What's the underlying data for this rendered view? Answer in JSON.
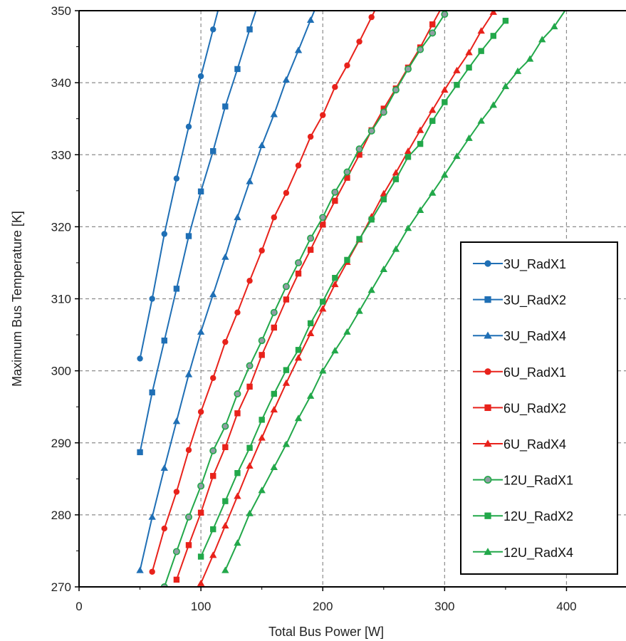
{
  "chart_data": {
    "type": "line",
    "title": "",
    "xlabel": "Total Bus Power [W]",
    "ylabel": "Maximum Bus Temperature [K]",
    "xlim": [
      0,
      450
    ],
    "ylim": [
      270,
      350
    ],
    "xticks": [
      0,
      100,
      200,
      300,
      400
    ],
    "yticks": [
      270,
      280,
      290,
      300,
      310,
      320,
      330,
      340,
      350
    ],
    "grid": true,
    "legend_position": "bottom-right",
    "series": [
      {
        "name": "3U_RadX1",
        "color": "#1f6fb5",
        "marker": "circle",
        "x": [
          50,
          60,
          70,
          80,
          90,
          100,
          110,
          120
        ],
        "y": [
          301.7,
          310.0,
          319.0,
          326.7,
          333.9,
          340.9,
          347.4,
          353.9
        ]
      },
      {
        "name": "3U_RadX2",
        "color": "#1f6fb5",
        "marker": "square",
        "x": [
          50,
          60,
          70,
          80,
          90,
          100,
          110,
          120,
          130,
          140,
          150
        ],
        "y": [
          288.7,
          297.0,
          304.2,
          311.4,
          318.7,
          324.9,
          330.5,
          336.7,
          341.9,
          347.4,
          352.5
        ]
      },
      {
        "name": "3U_RadX4",
        "color": "#1f6fb5",
        "marker": "triangle",
        "x": [
          50,
          60,
          70,
          80,
          90,
          100,
          110,
          120,
          130,
          140,
          150,
          160,
          170,
          180,
          190,
          200
        ],
        "y": [
          272.3,
          279.7,
          286.5,
          293.0,
          299.5,
          305.4,
          310.6,
          315.8,
          321.3,
          326.3,
          331.3,
          335.6,
          340.4,
          344.5,
          348.7,
          352.8
        ]
      },
      {
        "name": "6U_RadX1",
        "color": "#e8221b",
        "marker": "circle",
        "x": [
          60,
          70,
          80,
          90,
          100,
          110,
          120,
          130,
          140,
          150,
          160,
          170,
          180,
          190,
          200,
          210,
          220,
          230,
          240,
          250
        ],
        "y": [
          272.1,
          278.1,
          283.2,
          289.0,
          294.3,
          299.0,
          304.0,
          308.1,
          312.5,
          316.7,
          321.3,
          324.7,
          328.5,
          332.5,
          335.5,
          339.4,
          342.4,
          345.7,
          349.1,
          352.5
        ]
      },
      {
        "name": "6U_RadX2",
        "color": "#e8221b",
        "marker": "square",
        "x": [
          80,
          90,
          100,
          110,
          120,
          130,
          140,
          150,
          160,
          170,
          180,
          190,
          200,
          210,
          220,
          230,
          240,
          250,
          260,
          270,
          280,
          290,
          300
        ],
        "y": [
          271.0,
          275.8,
          280.3,
          285.4,
          289.4,
          294.1,
          297.8,
          302.2,
          306.0,
          309.9,
          313.5,
          316.8,
          320.3,
          323.6,
          326.8,
          330.0,
          333.4,
          336.4,
          339.2,
          342.1,
          344.9,
          348.1,
          351.2
        ]
      },
      {
        "name": "6U_RadX4",
        "color": "#e8221b",
        "marker": "triangle",
        "x": [
          100,
          110,
          120,
          130,
          140,
          150,
          160,
          170,
          180,
          190,
          200,
          210,
          220,
          230,
          240,
          250,
          260,
          270,
          280,
          290,
          300,
          310,
          320,
          330,
          340
        ],
        "y": [
          270.5,
          274.4,
          278.5,
          282.6,
          286.8,
          290.7,
          294.6,
          298.3,
          301.8,
          305.2,
          308.6,
          312.0,
          315.1,
          318.2,
          321.4,
          324.6,
          327.5,
          330.5,
          333.4,
          336.2,
          339.0,
          341.7,
          344.2,
          347.2,
          349.8
        ]
      },
      {
        "name": "12U_RadX1",
        "color": "#22a84a",
        "marker": "circle-gray",
        "x": [
          70,
          80,
          90,
          100,
          110,
          120,
          130,
          140,
          150,
          160,
          170,
          180,
          190,
          200,
          210,
          220,
          230,
          240,
          250,
          260,
          270,
          280,
          290,
          300
        ],
        "y": [
          270.0,
          274.9,
          279.7,
          284.0,
          288.9,
          292.3,
          296.8,
          300.7,
          304.2,
          308.1,
          311.7,
          315.0,
          318.4,
          321.3,
          324.8,
          327.6,
          330.8,
          333.3,
          335.9,
          339.0,
          341.9,
          344.6,
          346.9,
          349.5
        ]
      },
      {
        "name": "12U_RadX2",
        "color": "#22a84a",
        "marker": "square",
        "x": [
          100,
          110,
          120,
          130,
          140,
          150,
          160,
          170,
          180,
          190,
          200,
          210,
          220,
          230,
          240,
          250,
          260,
          270,
          280,
          290,
          300,
          310,
          320,
          330,
          340,
          350
        ],
        "y": [
          274.2,
          278.0,
          281.9,
          285.8,
          289.3,
          293.2,
          296.8,
          300.1,
          302.9,
          306.6,
          309.6,
          312.9,
          315.4,
          318.3,
          321.0,
          323.8,
          326.6,
          329.7,
          331.5,
          334.7,
          337.3,
          339.7,
          342.1,
          344.4,
          346.5,
          348.6
        ]
      },
      {
        "name": "12U_RadX4",
        "color": "#22a84a",
        "marker": "triangle",
        "x": [
          120,
          130,
          140,
          150,
          160,
          170,
          180,
          190,
          200,
          210,
          220,
          230,
          240,
          250,
          260,
          270,
          280,
          290,
          300,
          310,
          320,
          330,
          340,
          350,
          360,
          370,
          380,
          390,
          400
        ],
        "y": [
          272.3,
          276.1,
          280.2,
          283.4,
          286.6,
          289.8,
          293.4,
          296.5,
          300.0,
          302.8,
          305.4,
          308.3,
          311.2,
          314.1,
          316.9,
          319.8,
          322.3,
          324.7,
          327.2,
          329.8,
          332.3,
          334.7,
          336.9,
          339.5,
          341.6,
          343.3,
          346.0,
          347.8,
          350.3
        ]
      }
    ]
  }
}
